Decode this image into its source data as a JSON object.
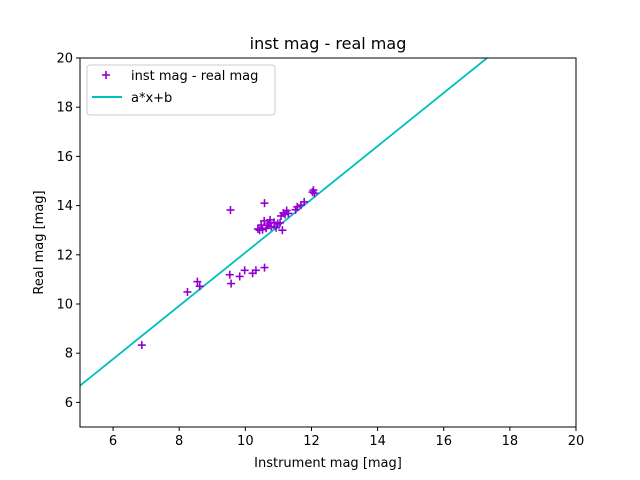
{
  "chart_data": {
    "type": "scatter",
    "title": "inst mag - real mag",
    "xlabel": "Instrument mag [mag]",
    "ylabel": "Real mag [mag]",
    "xlim": [
      5,
      20
    ],
    "ylim": [
      5,
      20
    ],
    "xticks": [
      6,
      8,
      10,
      12,
      14,
      16,
      18,
      20
    ],
    "yticks": [
      6,
      8,
      10,
      12,
      14,
      16,
      18,
      20
    ],
    "grid": false,
    "legend_position": "top-left",
    "series": [
      {
        "name": "inst mag - real mag",
        "kind": "scatter",
        "marker": "plus",
        "color": "#9400d3",
        "points": [
          [
            6.87,
            8.33
          ],
          [
            8.25,
            10.49
          ],
          [
            8.55,
            10.91
          ],
          [
            8.62,
            10.72
          ],
          [
            9.53,
            11.19
          ],
          [
            9.57,
            10.83
          ],
          [
            9.83,
            11.12
          ],
          [
            9.98,
            11.37
          ],
          [
            10.22,
            11.25
          ],
          [
            10.32,
            11.37
          ],
          [
            10.58,
            11.48
          ],
          [
            9.55,
            13.82
          ],
          [
            10.58,
            14.1
          ],
          [
            10.38,
            13.05
          ],
          [
            10.43,
            13.0
          ],
          [
            10.52,
            13.02
          ],
          [
            10.48,
            13.21
          ],
          [
            10.57,
            13.38
          ],
          [
            10.63,
            13.08
          ],
          [
            10.68,
            13.2
          ],
          [
            10.72,
            13.29
          ],
          [
            10.75,
            13.42
          ],
          [
            10.78,
            13.15
          ],
          [
            10.87,
            13.32
          ],
          [
            10.93,
            13.1
          ],
          [
            10.98,
            13.27
          ],
          [
            11.05,
            13.3
          ],
          [
            11.08,
            13.58
          ],
          [
            11.12,
            13.0
          ],
          [
            11.15,
            13.7
          ],
          [
            11.2,
            13.64
          ],
          [
            11.25,
            13.8
          ],
          [
            11.3,
            13.68
          ],
          [
            11.52,
            13.83
          ],
          [
            11.57,
            13.95
          ],
          [
            11.68,
            14.02
          ],
          [
            11.78,
            14.15
          ],
          [
            12.03,
            14.55
          ],
          [
            12.06,
            14.63
          ],
          [
            12.09,
            14.5
          ]
        ]
      },
      {
        "name": "a*x+b",
        "kind": "line",
        "color": "#00bfbf",
        "points": [
          [
            5.0,
            6.68
          ],
          [
            17.31,
            20.0
          ]
        ]
      }
    ]
  }
}
